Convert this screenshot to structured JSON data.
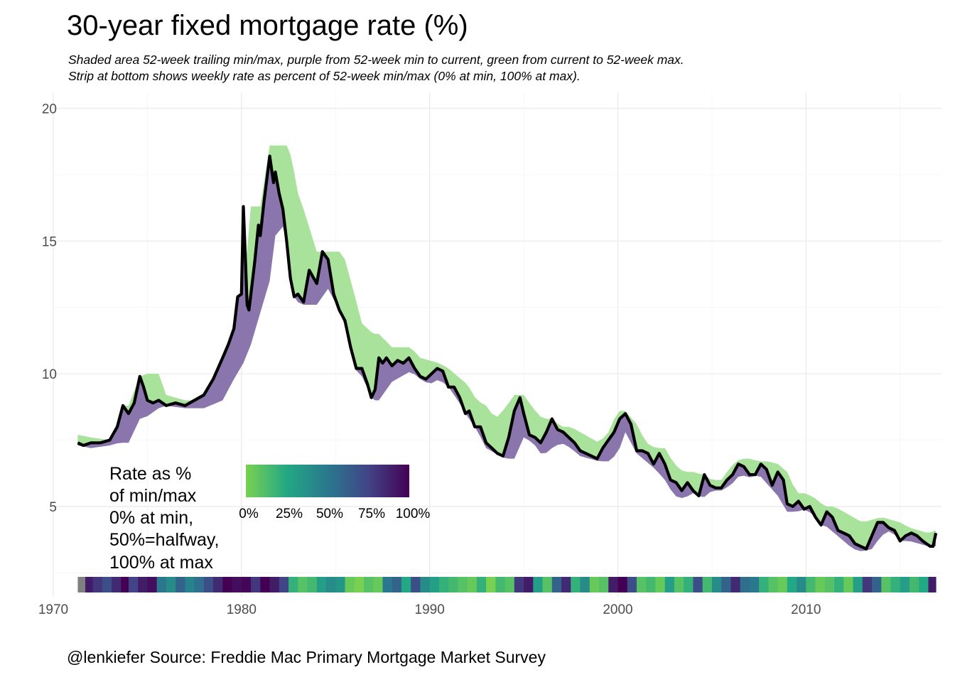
{
  "title": "30-year fixed mortgage rate (%)",
  "subtitle_lines": [
    "Shaded area 52-week trailing min/max, purple from 52-week min to current, green from current to 52-week max.",
    "Strip at bottom shows weekly rate as percent of 52-week min/max (0% at min, 100% at max)."
  ],
  "caption": "@lenkiefer Source: Freddie Mac Primary Mortgage Market Survey",
  "colors": {
    "rate_line": "#000000",
    "band_to_min": "#8a75ad",
    "band_to_max": "#a9e29a",
    "grid": "#ebebeb",
    "viridis": [
      "#7ad151",
      "#22a884",
      "#2a788e",
      "#414487",
      "#440154"
    ]
  },
  "chart_data": {
    "type": "line",
    "title": "30-year fixed mortgage rate (%)",
    "xlabel": "",
    "ylabel": "",
    "xlim": [
      1970,
      2017.2
    ],
    "ylim": [
      1.6,
      20.6
    ],
    "x_ticks": [
      1970,
      1980,
      1990,
      2000,
      2010
    ],
    "y_ticks": [
      5,
      10,
      15,
      20
    ],
    "grid": true,
    "series": [
      {
        "name": "rate",
        "x": [
          1971.3,
          1971.6,
          1972.0,
          1972.5,
          1973.0,
          1973.4,
          1973.7,
          1974.0,
          1974.3,
          1974.6,
          1974.8,
          1975.0,
          1975.3,
          1975.6,
          1976.0,
          1976.5,
          1977.0,
          1977.5,
          1978.0,
          1978.5,
          1979.0,
          1979.3,
          1979.6,
          1979.8,
          1980.0,
          1980.1,
          1980.2,
          1980.3,
          1980.4,
          1980.5,
          1980.7,
          1980.9,
          1981.0,
          1981.2,
          1981.5,
          1981.7,
          1981.8,
          1982.0,
          1982.2,
          1982.4,
          1982.6,
          1982.8,
          1983.0,
          1983.3,
          1983.6,
          1984.0,
          1984.3,
          1984.6,
          1984.9,
          1985.2,
          1985.5,
          1985.8,
          1986.1,
          1986.4,
          1986.7,
          1986.9,
          1987.1,
          1987.3,
          1987.5,
          1987.7,
          1988.0,
          1988.3,
          1988.6,
          1988.9,
          1989.2,
          1989.5,
          1989.8,
          1990.1,
          1990.4,
          1990.7,
          1991.0,
          1991.3,
          1991.6,
          1991.9,
          1992.1,
          1992.4,
          1992.7,
          1993.0,
          1993.3,
          1993.6,
          1993.9,
          1994.2,
          1994.5,
          1994.8,
          1995.0,
          1995.3,
          1995.6,
          1995.9,
          1996.2,
          1996.5,
          1996.8,
          1997.1,
          1997.4,
          1997.7,
          1998.0,
          1998.3,
          1998.6,
          1998.9,
          1999.2,
          1999.5,
          1999.8,
          2000.1,
          2000.4,
          2000.7,
          2001.0,
          2001.3,
          2001.6,
          2001.9,
          2002.2,
          2002.5,
          2002.8,
          2003.1,
          2003.4,
          2003.7,
          2004.0,
          2004.3,
          2004.6,
          2004.9,
          2005.2,
          2005.5,
          2005.8,
          2006.1,
          2006.4,
          2006.7,
          2007.0,
          2007.3,
          2007.6,
          2007.9,
          2008.2,
          2008.5,
          2008.8,
          2009.0,
          2009.3,
          2009.6,
          2009.9,
          2010.2,
          2010.5,
          2010.8,
          2011.1,
          2011.4,
          2011.7,
          2012.0,
          2012.3,
          2012.6,
          2012.9,
          2013.2,
          2013.5,
          2013.8,
          2014.1,
          2014.4,
          2014.7,
          2015.0,
          2015.3,
          2015.6,
          2015.9,
          2016.2,
          2016.4,
          2016.6,
          2016.75,
          2016.9
        ],
        "y": [
          7.4,
          7.3,
          7.4,
          7.4,
          7.5,
          8.0,
          8.8,
          8.5,
          8.9,
          9.9,
          9.5,
          9.0,
          8.9,
          9.0,
          8.8,
          8.9,
          8.8,
          9.0,
          9.2,
          9.8,
          10.6,
          11.1,
          11.7,
          12.9,
          13.0,
          16.3,
          14.5,
          12.6,
          12.4,
          13.0,
          14.2,
          15.6,
          15.2,
          16.5,
          18.2,
          17.2,
          17.6,
          16.8,
          16.2,
          15.0,
          13.6,
          12.9,
          13.0,
          12.7,
          13.9,
          13.4,
          14.6,
          14.3,
          13.0,
          12.4,
          12.0,
          11.0,
          10.2,
          10.2,
          9.6,
          9.1,
          9.4,
          10.6,
          10.4,
          10.6,
          10.3,
          10.5,
          10.4,
          10.6,
          10.2,
          9.9,
          9.8,
          10.0,
          10.2,
          10.1,
          9.5,
          9.5,
          9.1,
          8.5,
          8.6,
          8.0,
          8.0,
          7.4,
          7.2,
          7.0,
          6.9,
          7.6,
          8.6,
          9.1,
          8.5,
          7.7,
          7.6,
          7.4,
          7.8,
          8.3,
          7.9,
          7.8,
          7.6,
          7.4,
          7.1,
          7.0,
          6.9,
          6.8,
          7.2,
          7.5,
          7.8,
          8.3,
          8.5,
          8.1,
          7.1,
          7.1,
          7.0,
          6.6,
          7.0,
          6.6,
          6.0,
          5.9,
          5.6,
          5.9,
          5.6,
          5.4,
          6.2,
          5.8,
          5.7,
          5.7,
          6.0,
          6.2,
          6.6,
          6.5,
          6.2,
          6.2,
          6.6,
          6.4,
          5.8,
          6.3,
          6.0,
          5.1,
          5.0,
          5.2,
          4.9,
          5.0,
          4.6,
          4.3,
          4.8,
          4.6,
          4.1,
          4.0,
          3.9,
          3.6,
          3.5,
          3.4,
          3.9,
          4.4,
          4.4,
          4.2,
          4.1,
          3.7,
          3.9,
          4.0,
          3.9,
          3.7,
          3.6,
          3.5,
          3.5,
          4.0
        ]
      },
      {
        "name": "52-week max",
        "x": [
          1971.3,
          1972.0,
          1973.0,
          1973.5,
          1974.0,
          1974.6,
          1975.0,
          1975.6,
          1976.0,
          1977.0,
          1978.0,
          1979.0,
          1979.6,
          1980.1,
          1980.5,
          1981.0,
          1981.5,
          1981.8,
          1982.5,
          1982.8,
          1983.0,
          1983.3,
          1984.0,
          1984.6,
          1985.2,
          1985.5,
          1986.0,
          1986.4,
          1987.0,
          1987.3,
          1988.0,
          1989.0,
          1989.5,
          1990.0,
          1990.5,
          1991.0,
          1991.5,
          1992.0,
          1992.5,
          1993.0,
          1993.5,
          1994.0,
          1994.5,
          1995.0,
          1995.5,
          1996.0,
          1996.5,
          1997.0,
          1997.5,
          1998.0,
          1998.5,
          1999.0,
          1999.5,
          2000.0,
          2000.4,
          2001.0,
          2001.5,
          2002.0,
          2002.5,
          2003.0,
          2003.5,
          2004.0,
          2004.5,
          2005.0,
          2005.5,
          2006.0,
          2006.5,
          2007.0,
          2007.5,
          2008.0,
          2008.5,
          2009.0,
          2009.5,
          2010.0,
          2010.5,
          2011.0,
          2011.5,
          2012.0,
          2012.5,
          2013.0,
          2013.5,
          2014.0,
          2014.5,
          2015.0,
          2015.5,
          2016.0,
          2016.5,
          2016.9
        ],
        "y": [
          7.7,
          7.6,
          7.5,
          8.0,
          8.8,
          9.9,
          10.0,
          10.0,
          9.2,
          9.0,
          9.0,
          10.6,
          11.7,
          13.0,
          16.3,
          16.3,
          18.6,
          18.6,
          18.6,
          17.6,
          16.8,
          16.2,
          14.6,
          14.6,
          14.6,
          14.3,
          13.0,
          11.9,
          11.5,
          11.5,
          11.0,
          11.0,
          10.6,
          10.5,
          10.4,
          10.2,
          9.9,
          9.6,
          9.0,
          8.8,
          8.3,
          8.7,
          9.2,
          9.2,
          8.7,
          8.3,
          8.3,
          8.0,
          8.0,
          7.8,
          7.6,
          7.4,
          7.8,
          8.6,
          8.6,
          8.1,
          7.4,
          7.2,
          7.2,
          6.6,
          6.3,
          6.3,
          6.2,
          6.0,
          6.0,
          6.5,
          6.8,
          6.8,
          6.7,
          6.7,
          6.6,
          6.3,
          5.5,
          5.5,
          5.3,
          5.0,
          5.0,
          4.8,
          4.6,
          4.4,
          4.5,
          4.6,
          4.5,
          4.4,
          4.2,
          4.1,
          4.0,
          4.1
        ]
      },
      {
        "name": "52-week min",
        "x": [
          1971.3,
          1972.0,
          1973.0,
          1973.5,
          1974.0,
          1974.6,
          1975.0,
          1975.6,
          1976.0,
          1977.0,
          1978.0,
          1979.0,
          1979.6,
          1980.1,
          1980.5,
          1981.0,
          1981.5,
          1981.8,
          1982.5,
          1982.8,
          1983.0,
          1983.3,
          1984.0,
          1984.6,
          1985.2,
          1985.5,
          1986.0,
          1986.4,
          1987.0,
          1987.3,
          1988.0,
          1989.0,
          1989.5,
          1990.0,
          1990.5,
          1991.0,
          1991.5,
          1992.0,
          1992.5,
          1993.0,
          1993.5,
          1994.0,
          1994.5,
          1995.0,
          1995.5,
          1996.0,
          1996.5,
          1997.0,
          1997.5,
          1998.0,
          1998.5,
          1999.0,
          1999.5,
          2000.0,
          2000.4,
          2001.0,
          2001.5,
          2002.0,
          2002.5,
          2003.0,
          2003.5,
          2004.0,
          2004.5,
          2005.0,
          2005.5,
          2006.0,
          2006.5,
          2007.0,
          2007.5,
          2008.0,
          2008.5,
          2009.0,
          2009.5,
          2010.0,
          2010.5,
          2011.0,
          2011.5,
          2012.0,
          2012.5,
          2013.0,
          2013.5,
          2014.0,
          2014.5,
          2015.0,
          2015.5,
          2016.0,
          2016.5,
          2016.9
        ],
        "y": [
          7.3,
          7.2,
          7.3,
          7.4,
          7.4,
          8.3,
          8.4,
          8.7,
          8.8,
          8.7,
          8.7,
          9.0,
          9.8,
          10.4,
          11.1,
          12.3,
          13.5,
          15.2,
          15.8,
          13.5,
          12.7,
          12.6,
          12.6,
          13.2,
          12.4,
          11.8,
          10.2,
          9.9,
          9.0,
          9.0,
          9.7,
          10.1,
          9.8,
          9.6,
          9.8,
          9.5,
          9.0,
          8.4,
          7.9,
          7.2,
          7.0,
          6.8,
          6.8,
          7.6,
          7.4,
          6.9,
          7.2,
          7.4,
          7.2,
          6.9,
          6.8,
          6.7,
          6.7,
          7.0,
          7.8,
          7.0,
          6.7,
          6.4,
          6.0,
          5.4,
          5.3,
          5.5,
          5.3,
          5.6,
          5.6,
          5.8,
          6.2,
          6.1,
          6.2,
          5.8,
          5.4,
          4.8,
          4.8,
          4.9,
          4.6,
          4.3,
          4.0,
          3.7,
          3.4,
          3.3,
          3.4,
          3.9,
          4.1,
          3.7,
          3.7,
          3.6,
          3.5,
          3.5
        ]
      }
    ],
    "strip": {
      "x": [
        1971.3,
        1971.7,
        1972.1,
        1972.6,
        1973.1,
        1973.6,
        1974.0,
        1974.5,
        1975.0,
        1975.5,
        1976.0,
        1976.5,
        1977.0,
        1977.5,
        1978.0,
        1978.5,
        1979.0,
        1979.5,
        1980.0,
        1980.5,
        1981.0,
        1981.5,
        1982.0,
        1982.5,
        1983.0,
        1983.5,
        1984.0,
        1984.5,
        1985.0,
        1985.5,
        1986.0,
        1986.5,
        1987.0,
        1987.5,
        1988.0,
        1988.5,
        1989.0,
        1989.5,
        1990.0,
        1990.5,
        1991.0,
        1991.5,
        1992.0,
        1992.5,
        1993.0,
        1993.5,
        1994.0,
        1994.5,
        1995.0,
        1995.5,
        1996.0,
        1996.5,
        1997.0,
        1997.5,
        1998.0,
        1998.5,
        1999.0,
        1999.5,
        2000.0,
        2000.5,
        2001.0,
        2001.5,
        2002.0,
        2002.5,
        2003.0,
        2003.5,
        2004.0,
        2004.5,
        2005.0,
        2005.5,
        2006.0,
        2006.5,
        2007.0,
        2007.5,
        2008.0,
        2008.5,
        2009.0,
        2009.5,
        2010.0,
        2010.5,
        2011.0,
        2011.5,
        2012.0,
        2012.5,
        2013.0,
        2013.5,
        2014.0,
        2014.5,
        2015.0,
        2015.5,
        2016.0,
        2016.5
      ],
      "pct": [
        null,
        90,
        80,
        70,
        85,
        100,
        75,
        90,
        95,
        50,
        40,
        60,
        45,
        55,
        70,
        85,
        100,
        95,
        98,
        80,
        100,
        90,
        75,
        20,
        10,
        15,
        30,
        40,
        35,
        5,
        0,
        10,
        5,
        50,
        60,
        25,
        70,
        40,
        30,
        20,
        15,
        10,
        5,
        20,
        0,
        15,
        10,
        80,
        90,
        30,
        10,
        60,
        85,
        20,
        40,
        5,
        10,
        90,
        100,
        70,
        10,
        15,
        5,
        30,
        10,
        20,
        70,
        15,
        40,
        60,
        85,
        55,
        50,
        20,
        10,
        5,
        25,
        40,
        15,
        5,
        10,
        20,
        5,
        30,
        80,
        60,
        10,
        20,
        30,
        15,
        25,
        90
      ]
    },
    "legend": {
      "title_lines": [
        "Rate as %",
        "of min/max",
        "0% at min,",
        "50%=halfway,",
        "100% at max"
      ],
      "labels": [
        "0%",
        "25%",
        "50%",
        "75%",
        "100%"
      ]
    }
  }
}
